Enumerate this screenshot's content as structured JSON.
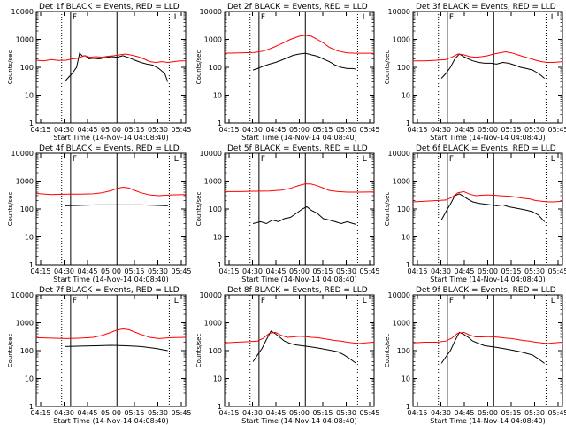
{
  "figure": {
    "xlabel": "Start Time (14-Nov-14 04:08:40)",
    "ylabel": "Counts/sec",
    "x_tick_labels": [
      "04:15",
      "04:30",
      "04:45",
      "05:00",
      "05:15",
      "05:30",
      "05:45"
    ],
    "y_tick_labels": [
      "1",
      "10",
      "100",
      "1000",
      "10000"
    ],
    "colors": {
      "events": "#000000",
      "lld": "#ff0000",
      "axes": "#000000",
      "background": "#ffffff"
    }
  },
  "chart_data": [
    {
      "type": "line",
      "title": "Det 1f BLACK = Events, RED = LLD",
      "xlabel": "Start Time (14-Nov-14 04:08:40)",
      "ylabel": "Counts/sec",
      "xlim": [
        0,
        100
      ],
      "ylim": [
        1,
        10000
      ],
      "yscale": "log",
      "markers": {
        "F": 23,
        "L": 91
      },
      "dotted_x": [
        17,
        89
      ],
      "solid_x": [
        23,
        54
      ],
      "series": [
        {
          "key": "events",
          "color": "#000000",
          "x": [
            19,
            21,
            24,
            27,
            29,
            31,
            33,
            35,
            38,
            42,
            46,
            50,
            54,
            58,
            62,
            66,
            70,
            74,
            78,
            82,
            86,
            88
          ],
          "values": [
            30,
            40,
            60,
            100,
            320,
            250,
            260,
            200,
            210,
            200,
            220,
            240,
            230,
            260,
            220,
            180,
            150,
            130,
            120,
            90,
            60,
            30
          ]
        },
        {
          "key": "lld",
          "color": "#ff0000",
          "x": [
            0,
            5,
            10,
            15,
            20,
            24,
            28,
            32,
            36,
            40,
            44,
            48,
            52,
            56,
            60,
            64,
            68,
            72,
            76,
            80,
            84,
            88,
            92,
            96,
            100
          ],
          "values": [
            180,
            170,
            190,
            175,
            180,
            200,
            210,
            260,
            230,
            240,
            230,
            250,
            260,
            280,
            300,
            270,
            240,
            200,
            160,
            150,
            160,
            150,
            160,
            170,
            170
          ]
        }
      ]
    },
    {
      "type": "line",
      "title": "Det 2f BLACK = Events, RED = LLD",
      "xlabel": "Start Time (14-Nov-14 04:08:40)",
      "ylabel": "Counts/sec",
      "xlim": [
        0,
        100
      ],
      "ylim": [
        1,
        10000
      ],
      "yscale": "log",
      "markers": {
        "F": 23,
        "L": 91
      },
      "dotted_x": [
        17,
        89
      ],
      "solid_x": [
        23,
        54
      ],
      "series": [
        {
          "key": "events",
          "color": "#000000",
          "x": [
            19,
            22,
            26,
            30,
            34,
            38,
            42,
            46,
            50,
            54,
            58,
            62,
            66,
            70,
            74,
            78,
            82,
            86,
            88
          ],
          "values": [
            80,
            90,
            110,
            130,
            150,
            180,
            220,
            270,
            300,
            320,
            280,
            250,
            200,
            160,
            120,
            100,
            90,
            90,
            85
          ]
        },
        {
          "key": "lld",
          "color": "#ff0000",
          "x": [
            0,
            10,
            20,
            26,
            32,
            38,
            44,
            50,
            54,
            58,
            62,
            66,
            70,
            76,
            82,
            88,
            94,
            100
          ],
          "values": [
            320,
            330,
            340,
            380,
            500,
            700,
            1000,
            1300,
            1400,
            1300,
            1000,
            750,
            520,
            380,
            330,
            320,
            320,
            320
          ]
        }
      ]
    },
    {
      "type": "line",
      "title": "Det 3f BLACK = Events, RED = LLD",
      "xlabel": "Start Time (14-Nov-14 04:08:40)",
      "ylabel": "Counts/sec",
      "xlim": [
        0,
        100
      ],
      "ylim": [
        1,
        10000
      ],
      "yscale": "log",
      "markers": {
        "F": 23,
        "L": 91
      },
      "dotted_x": [
        17,
        89
      ],
      "solid_x": [
        23,
        54
      ],
      "series": [
        {
          "key": "events",
          "color": "#000000",
          "x": [
            19,
            22,
            25,
            28,
            31,
            34,
            37,
            40,
            44,
            48,
            52,
            56,
            60,
            64,
            68,
            72,
            76,
            80,
            84,
            88
          ],
          "values": [
            40,
            60,
            100,
            200,
            300,
            240,
            200,
            170,
            150,
            140,
            140,
            130,
            150,
            140,
            120,
            100,
            90,
            80,
            60,
            40
          ]
        },
        {
          "key": "lld",
          "color": "#ff0000",
          "x": [
            0,
            8,
            16,
            22,
            26,
            30,
            34,
            38,
            42,
            46,
            50,
            54,
            58,
            62,
            66,
            70,
            74,
            78,
            82,
            86,
            90,
            94,
            100
          ],
          "values": [
            170,
            170,
            180,
            190,
            230,
            300,
            280,
            240,
            230,
            240,
            260,
            300,
            330,
            360,
            330,
            280,
            240,
            210,
            180,
            160,
            150,
            150,
            160
          ]
        }
      ]
    },
    {
      "type": "line",
      "title": "Det 4f BLACK = Events, RED = LLD",
      "xlabel": "Start Time (14-Nov-14 04:08:40)",
      "ylabel": "Counts/sec",
      "xlim": [
        0,
        100
      ],
      "ylim": [
        1,
        10000
      ],
      "yscale": "log",
      "markers": {
        "F": 23,
        "L": 91
      },
      "dotted_x": [
        17,
        89
      ],
      "solid_x": [
        23,
        54
      ],
      "series": [
        {
          "key": "events",
          "color": "#000000",
          "x": [
            19,
            30,
            40,
            50,
            60,
            70,
            80,
            88
          ],
          "values": [
            130,
            135,
            140,
            140,
            140,
            140,
            135,
            130
          ]
        },
        {
          "key": "lld",
          "color": "#ff0000",
          "x": [
            0,
            10,
            20,
            30,
            38,
            44,
            50,
            54,
            58,
            62,
            66,
            70,
            76,
            82,
            90,
            100
          ],
          "values": [
            360,
            330,
            340,
            340,
            350,
            380,
            450,
            540,
            600,
            560,
            460,
            380,
            320,
            300,
            320,
            330
          ]
        }
      ]
    },
    {
      "type": "line",
      "title": "Det 5f BLACK = Events, RED = LLD",
      "xlabel": "Start Time (14-Nov-14 04:08:40)",
      "ylabel": "Counts/sec",
      "xlim": [
        0,
        100
      ],
      "ylim": [
        1,
        10000
      ],
      "yscale": "log",
      "markers": {
        "F": 23,
        "L": 91
      },
      "dotted_x": [
        17,
        89
      ],
      "solid_x": [
        23,
        54
      ],
      "series": [
        {
          "key": "events",
          "color": "#000000",
          "x": [
            19,
            24,
            28,
            32,
            36,
            40,
            44,
            48,
            52,
            55,
            58,
            62,
            66,
            70,
            74,
            78,
            82,
            86,
            88
          ],
          "values": [
            30,
            35,
            30,
            40,
            35,
            45,
            50,
            70,
            100,
            120,
            90,
            70,
            45,
            40,
            35,
            30,
            35,
            30,
            28
          ]
        },
        {
          "key": "lld",
          "color": "#ff0000",
          "x": [
            0,
            10,
            20,
            30,
            38,
            44,
            50,
            54,
            58,
            62,
            66,
            70,
            76,
            82,
            90,
            100
          ],
          "values": [
            420,
            420,
            430,
            440,
            470,
            550,
            700,
            800,
            780,
            680,
            560,
            460,
            420,
            400,
            400,
            410
          ]
        }
      ]
    },
    {
      "type": "line",
      "title": "Det 6f BLACK = Events, RED = LLD",
      "xlabel": "Start Time (14-Nov-14 04:08:40)",
      "ylabel": "Counts/sec",
      "xlim": [
        0,
        100
      ],
      "ylim": [
        1,
        10000
      ],
      "yscale": "log",
      "markers": {
        "F": 23,
        "L": 91
      },
      "dotted_x": [
        17,
        89
      ],
      "solid_x": [
        23,
        54
      ],
      "series": [
        {
          "key": "events",
          "color": "#000000",
          "x": [
            19,
            22,
            25,
            28,
            31,
            34,
            37,
            40,
            44,
            48,
            52,
            56,
            60,
            64,
            68,
            72,
            76,
            80,
            84,
            88
          ],
          "values": [
            40,
            80,
            150,
            300,
            350,
            280,
            220,
            180,
            160,
            150,
            140,
            130,
            140,
            120,
            110,
            100,
            90,
            80,
            60,
            35
          ]
        },
        {
          "key": "lld",
          "color": "#ff0000",
          "x": [
            0,
            8,
            16,
            22,
            26,
            30,
            34,
            38,
            42,
            46,
            50,
            54,
            58,
            62,
            66,
            70,
            74,
            78,
            82,
            86,
            90,
            94,
            100
          ],
          "values": [
            180,
            190,
            200,
            210,
            260,
            380,
            420,
            340,
            300,
            310,
            320,
            310,
            300,
            290,
            280,
            260,
            240,
            230,
            200,
            190,
            180,
            180,
            190
          ]
        }
      ]
    },
    {
      "type": "line",
      "title": "Det 7f BLACK = Events, RED = LLD",
      "xlabel": "Start Time (14-Nov-14 04:08:40)",
      "ylabel": "Counts/sec",
      "xlim": [
        0,
        100
      ],
      "ylim": [
        1,
        10000
      ],
      "yscale": "log",
      "markers": {
        "F": 23,
        "L": 91
      },
      "dotted_x": [
        17,
        89
      ],
      "solid_x": [
        23,
        54
      ],
      "series": [
        {
          "key": "events",
          "color": "#000000",
          "x": [
            19,
            30,
            40,
            50,
            60,
            70,
            80,
            88
          ],
          "values": [
            140,
            145,
            150,
            155,
            150,
            140,
            120,
            100
          ]
        },
        {
          "key": "lld",
          "color": "#ff0000",
          "x": [
            0,
            10,
            20,
            30,
            38,
            44,
            50,
            54,
            58,
            62,
            66,
            70,
            76,
            82,
            90,
            100
          ],
          "values": [
            290,
            280,
            270,
            280,
            300,
            350,
            450,
            550,
            600,
            560,
            460,
            380,
            300,
            270,
            290,
            300
          ]
        }
      ]
    },
    {
      "type": "line",
      "title": "Det 8f BLACK = Events, RED = LLD",
      "xlabel": "Start Time (14-Nov-14 04:08:40)",
      "ylabel": "Counts/sec",
      "xlim": [
        0,
        100
      ],
      "ylim": [
        1,
        10000
      ],
      "yscale": "log",
      "markers": {
        "F": 23,
        "L": 91
      },
      "dotted_x": [
        17,
        89
      ],
      "solid_x": [
        23,
        54
      ],
      "series": [
        {
          "key": "events",
          "color": "#000000",
          "x": [
            19,
            22,
            25,
            28,
            31,
            34,
            37,
            40,
            44,
            48,
            52,
            56,
            60,
            64,
            68,
            72,
            76,
            80,
            84,
            88
          ],
          "values": [
            40,
            70,
            120,
            250,
            500,
            400,
            300,
            220,
            180,
            160,
            150,
            140,
            130,
            120,
            110,
            100,
            90,
            70,
            50,
            35
          ]
        },
        {
          "key": "lld",
          "color": "#ff0000",
          "x": [
            0,
            8,
            16,
            22,
            26,
            30,
            34,
            38,
            42,
            46,
            50,
            54,
            58,
            62,
            66,
            70,
            74,
            78,
            82,
            86,
            90,
            94,
            100
          ],
          "values": [
            190,
            200,
            210,
            220,
            280,
            420,
            450,
            350,
            300,
            310,
            330,
            320,
            300,
            290,
            270,
            250,
            230,
            220,
            200,
            190,
            180,
            190,
            200
          ]
        }
      ]
    },
    {
      "type": "line",
      "title": "Det 9f BLACK = Events, RED = LLD",
      "xlabel": "Start Time (14-Nov-14 04:08:40)",
      "ylabel": "Counts/sec",
      "xlim": [
        0,
        100
      ],
      "ylim": [
        1,
        10000
      ],
      "yscale": "log",
      "markers": {
        "F": 23,
        "L": 91
      },
      "dotted_x": [
        17,
        89
      ],
      "solid_x": [
        23,
        54
      ],
      "series": [
        {
          "key": "events",
          "color": "#000000",
          "x": [
            19,
            22,
            25,
            28,
            31,
            34,
            37,
            40,
            44,
            48,
            52,
            56,
            60,
            64,
            68,
            72,
            76,
            80,
            84,
            88
          ],
          "values": [
            35,
            60,
            100,
            220,
            450,
            380,
            300,
            220,
            180,
            150,
            140,
            130,
            120,
            110,
            100,
            90,
            80,
            70,
            50,
            35
          ]
        },
        {
          "key": "lld",
          "color": "#ff0000",
          "x": [
            0,
            8,
            16,
            22,
            26,
            30,
            34,
            38,
            42,
            46,
            50,
            54,
            58,
            62,
            66,
            70,
            74,
            78,
            82,
            86,
            90,
            94,
            100
          ],
          "values": [
            190,
            200,
            200,
            220,
            280,
            420,
            450,
            360,
            310,
            310,
            320,
            310,
            300,
            280,
            270,
            250,
            230,
            220,
            200,
            190,
            180,
            190,
            200
          ]
        }
      ]
    }
  ]
}
